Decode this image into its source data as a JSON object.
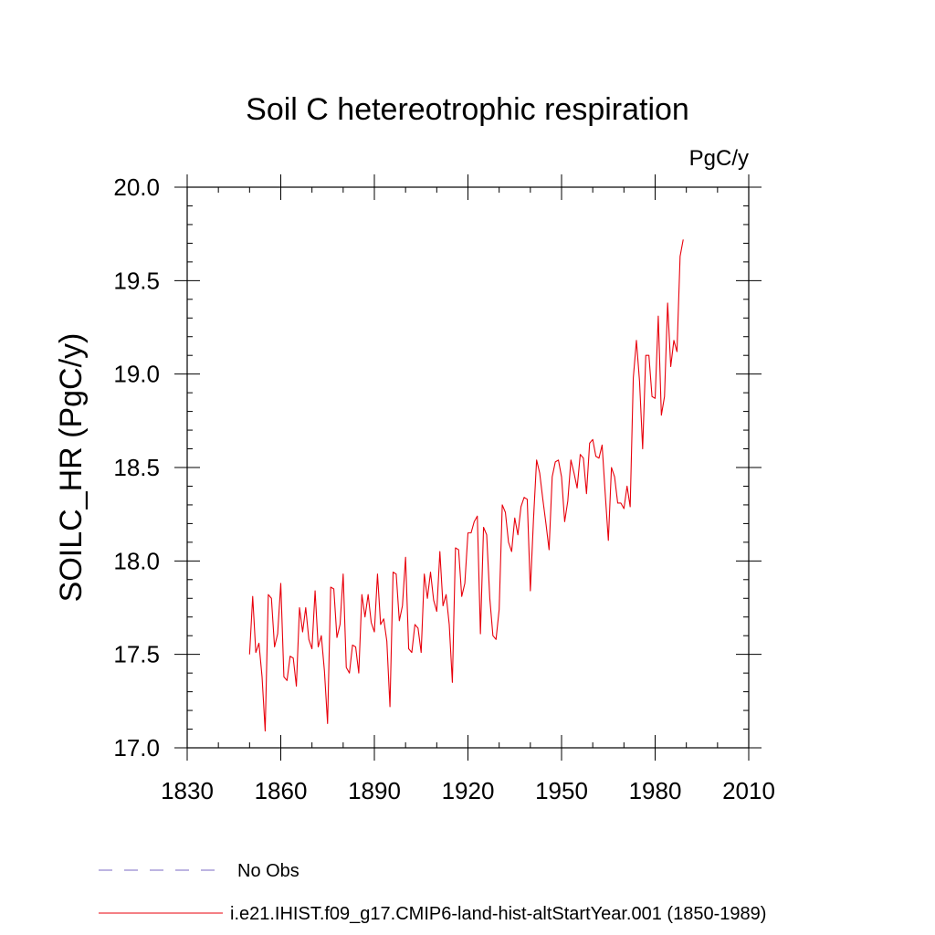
{
  "chart_data": {
    "type": "line",
    "title": "Soil C hetereotrophic respiration",
    "units": "PgC/y",
    "ylabel": "SOILC_HR  (PgC/y)",
    "xlabel": "",
    "xlim": [
      1830,
      2010
    ],
    "ylim": [
      17.0,
      20.0
    ],
    "x_ticks": [
      "1830",
      "1860",
      "1890",
      "1920",
      "1950",
      "1980",
      "2010"
    ],
    "y_ticks": [
      "17.0",
      "17.5",
      "18.0",
      "18.5",
      "19.0",
      "19.5",
      "20.0"
    ],
    "x_major": [
      1830,
      1860,
      1890,
      1920,
      1950,
      1980,
      2010
    ],
    "y_major": [
      17.0,
      17.5,
      18.0,
      18.5,
      19.0,
      19.5,
      20.0
    ],
    "grid": false,
    "legend": [
      {
        "label": "No Obs",
        "color": "#7b68c4",
        "style": "dashed"
      },
      {
        "label": "i.e21.IHIST.f09_g17.CMIP6-land-hist-altStartYear.001 (1850-1989)",
        "color": "#e8000b",
        "style": "solid"
      }
    ],
    "series": [
      {
        "name": "i.e21.IHIST.f09_g17.CMIP6-land-hist-altStartYear.001 (1850-1989)",
        "color": "#e8000b",
        "x_start": 1850,
        "x_step": 1,
        "values": [
          17.5,
          17.81,
          17.51,
          17.56,
          17.38,
          17.09,
          17.82,
          17.8,
          17.54,
          17.61,
          17.88,
          17.38,
          17.36,
          17.49,
          17.48,
          17.33,
          17.75,
          17.62,
          17.75,
          17.58,
          17.53,
          17.84,
          17.54,
          17.6,
          17.41,
          17.13,
          17.86,
          17.85,
          17.59,
          17.66,
          17.93,
          17.43,
          17.4,
          17.55,
          17.54,
          17.4,
          17.82,
          17.7,
          17.82,
          17.67,
          17.62,
          17.93,
          17.66,
          17.69,
          17.57,
          17.22,
          17.94,
          17.93,
          17.68,
          17.76,
          18.02,
          17.53,
          17.51,
          17.66,
          17.64,
          17.51,
          17.93,
          17.8,
          17.94,
          17.79,
          17.73,
          18.05,
          17.76,
          17.82,
          17.66,
          17.35,
          18.07,
          18.06,
          17.81,
          17.88,
          18.15,
          18.15,
          18.21,
          18.24,
          17.61,
          18.18,
          18.14,
          17.8,
          17.6,
          17.58,
          17.74,
          18.3,
          18.26,
          18.1,
          18.05,
          18.23,
          18.14,
          18.29,
          18.34,
          18.33,
          17.84,
          18.22,
          18.54,
          18.47,
          18.33,
          18.2,
          18.06,
          18.45,
          18.53,
          18.54,
          18.45,
          18.21,
          18.32,
          18.54,
          18.47,
          18.39,
          18.57,
          18.55,
          18.36,
          18.63,
          18.65,
          18.56,
          18.55,
          18.62,
          18.36,
          18.11,
          18.5,
          18.45,
          18.31,
          18.31,
          18.28,
          18.4,
          18.29,
          18.98,
          19.18,
          18.96,
          18.6,
          19.1,
          19.1,
          18.88,
          18.87,
          19.31,
          18.78,
          18.88,
          19.38,
          19.04,
          19.18,
          19.12,
          19.63,
          19.72
        ]
      }
    ]
  }
}
